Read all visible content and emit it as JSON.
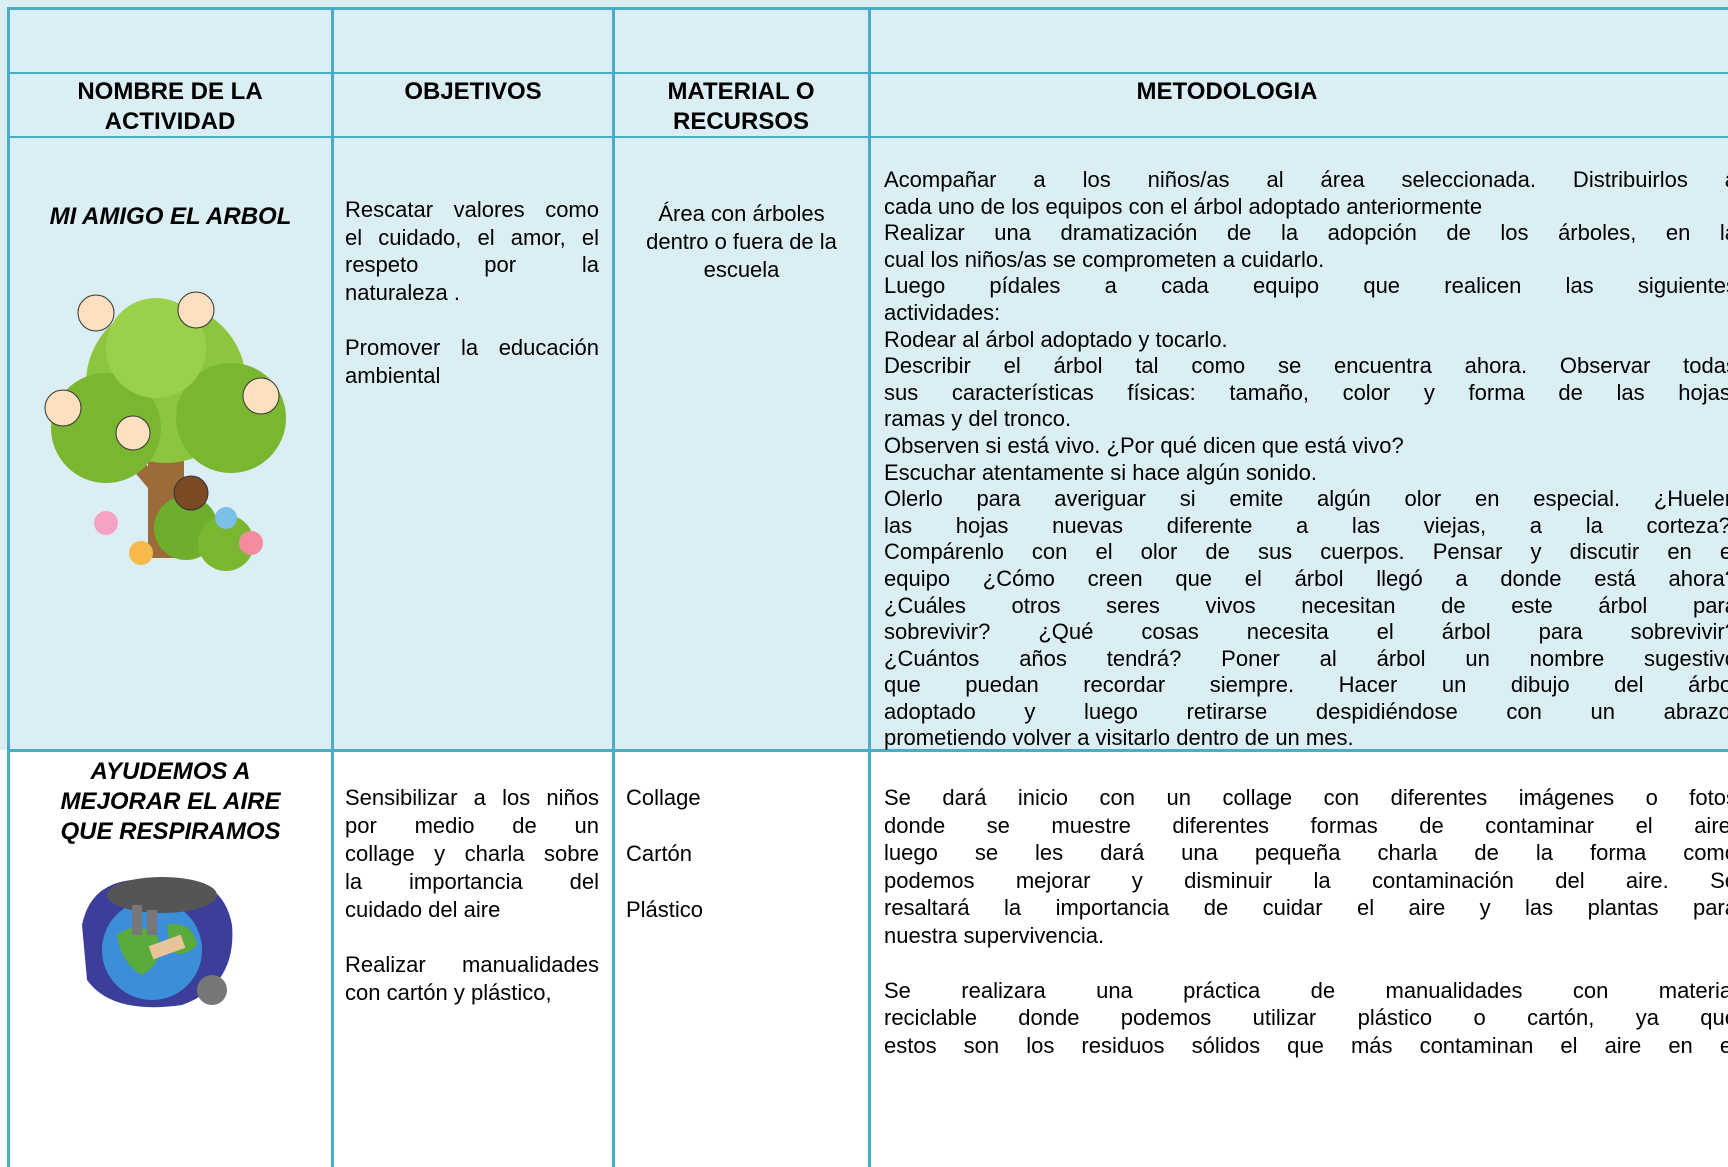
{
  "table": {
    "header": [
      "NOMBRE DE LA ACTIVIDAD",
      "OBJETIVOS",
      "MATERIAL O RECURSOS",
      "METODOLOGIA"
    ],
    "rows": [
      {
        "name": [
          "MI AMIGO EL ARBOL"
        ],
        "objectives": [
          [
            "Rescatar valores como",
            "el cuidado, el amor, el",
            "respeto por la",
            "naturaleza ."
          ],
          [
            "Promover la educación",
            "ambiental"
          ]
        ],
        "materials": [
          [
            "Área con árboles",
            "dentro o fuera de la",
            "escuela"
          ]
        ],
        "methodology": [
          [
            "Acompañar a los niños/as al área seleccionada. Distribuirlos a",
            "cada uno de los equipos con el árbol adoptado anteriormente"
          ],
          [
            "Realizar una dramatización de la adopción de los árboles, en la",
            "cual los niños/as se comprometen a cuidarlo."
          ],
          [
            "Luego pídales a cada equipo que realicen las siguientes",
            "actividades:"
          ],
          [
            "Rodear al árbol adoptado y tocarlo."
          ],
          [
            "Describir el árbol tal como se encuentra ahora.  Observar todas",
            "sus características físicas: tamaño, color y forma de las hojas,",
            "ramas y del tronco."
          ],
          [
            "Observen si está vivo. ¿Por qué dicen que está vivo?"
          ],
          [
            "Escuchar atentamente si hace algún sonido."
          ],
          [
            "Olerlo para averiguar si emite algún olor en especial. ¿Huelen",
            "las hojas nuevas diferente a las viejas, a la corteza?.",
            "Compárenlo con el olor de sus cuerpos.  Pensar y discutir en el",
            "equipo ¿Cómo creen que el árbol llegó a donde está ahora?",
            "¿Cuáles otros seres vivos necesitan de este árbol para",
            "sobrevivir? ¿Qué cosas necesita el árbol para sobrevivir?",
            "¿Cuántos años tendrá? Poner al árbol un nombre sugestivo",
            "que puedan recordar siempre. Hacer un dibujo del árbol",
            "adoptado y luego retirarse despidiéndose con un abrazo,",
            "prometiendo volver a visitarlo dentro de un mes."
          ]
        ]
      },
      {
        "name": [
          "AYUDEMOS A",
          "MEJORAR EL AIRE",
          "QUE RESPIRAMOS"
        ],
        "objectives": [
          [
            "Sensibilizar a los niños",
            "por medio de un",
            "collage y charla sobre",
            "la importancia del",
            "cuidado del aire"
          ],
          [
            "Realizar manualidades",
            "con cartón y plástico,"
          ]
        ],
        "materials": [
          [
            "Collage"
          ],
          [
            "Cartón"
          ],
          [
            "Plástico"
          ]
        ],
        "methodology": [
          [
            "Se dará inicio con un collage con diferentes imágenes o fotos",
            "donde se muestre diferentes formas de contaminar el aire,",
            "luego se les dará una pequeña charla de la forma como",
            "podemos mejorar y disminuir la contaminación del aire. Se",
            "resaltará la importancia de cuidar el aire y las plantas para",
            "nuestra supervivencia."
          ],
          [
            "Se realizara una práctica de manualidades con material",
            "reciclable donde podemos utilizar plástico o cartón, ya que",
            "estos son los residuos sólidos que más contaminan el aire en el"
          ]
        ]
      }
    ]
  }
}
